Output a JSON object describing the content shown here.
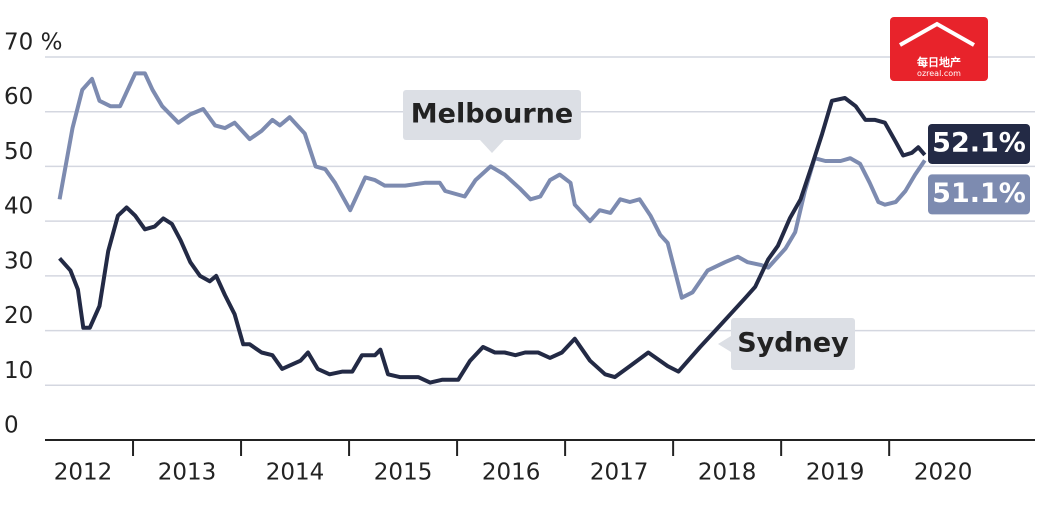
{
  "chart_data": {
    "type": "line",
    "xlim": [
      2012.185,
      2021.35
    ],
    "xticks": [
      {
        "value": 2012,
        "label": "2012"
      },
      {
        "value": 2013,
        "label": "2013"
      },
      {
        "value": 2014,
        "label": "2014"
      },
      {
        "value": 2015,
        "label": "2015"
      },
      {
        "value": 2016,
        "label": "2016"
      },
      {
        "value": 2017,
        "label": "2017"
      },
      {
        "value": 2018,
        "label": "2018"
      },
      {
        "value": 2019,
        "label": "2019"
      },
      {
        "value": 2020,
        "label": "2020"
      }
    ],
    "ylim": [
      0,
      70
    ],
    "yticks": [
      0,
      10,
      20,
      30,
      40,
      50,
      60,
      {
        "value": 70,
        "label": "70 %"
      }
    ],
    "grid": true,
    "watermark": {
      "text": "每日地产",
      "url": "ozreal.com"
    },
    "series": [
      {
        "name": "Melbourne",
        "color": "#7d8bb0",
        "end_label": "51.1%",
        "x": [
          2012.32,
          2012.44,
          2012.53,
          2012.62,
          2012.69,
          2012.79,
          2012.88,
          2013.02,
          2013.11,
          2013.18,
          2013.27,
          2013.42,
          2013.53,
          2013.65,
          2013.76,
          2013.85,
          2013.94,
          2014.08,
          2014.19,
          2014.29,
          2014.36,
          2014.45,
          2014.59,
          2014.69,
          2014.78,
          2014.87,
          2015.01,
          2015.15,
          2015.24,
          2015.33,
          2015.52,
          2015.7,
          2015.84,
          2015.89,
          2016.07,
          2016.17,
          2016.31,
          2016.44,
          2016.58,
          2016.68,
          2016.77,
          2016.86,
          2016.95,
          2017.05,
          2017.09,
          2017.23,
          2017.32,
          2017.42,
          2017.51,
          2017.6,
          2017.69,
          2017.79,
          2017.88,
          2017.95,
          2018.08,
          2018.18,
          2018.32,
          2018.48,
          2018.6,
          2018.69,
          2018.81,
          2018.88,
          2019.04,
          2019.13,
          2019.22,
          2019.31,
          2019.41,
          2019.55,
          2019.64,
          2019.73,
          2019.82,
          2019.9,
          2019.96,
          2020.06,
          2020.15,
          2020.24,
          2020.33
        ],
        "values": [
          44,
          57,
          64,
          66,
          62,
          61,
          61,
          67,
          67,
          64,
          61,
          58,
          59.5,
          60.5,
          57.5,
          57,
          58,
          55,
          56.5,
          58.5,
          57.5,
          59,
          56,
          50,
          49.5,
          47,
          42,
          48,
          47.5,
          46.5,
          46.5,
          47,
          47,
          45.5,
          44.5,
          47.5,
          50,
          48.5,
          46,
          44,
          44.5,
          47.5,
          48.5,
          47,
          43,
          40,
          42,
          41.5,
          44,
          43.5,
          44,
          41,
          37.5,
          36,
          26,
          27,
          31,
          32.5,
          33.5,
          32.5,
          32,
          31.5,
          35,
          38,
          45.5,
          51.5,
          51,
          51,
          51.5,
          50.5,
          47,
          43.5,
          43,
          43.5,
          45.5,
          48.5,
          51.1
        ]
      },
      {
        "name": "Sydney",
        "color": "#232a45",
        "end_label": "52.1%",
        "x": [
          2012.32,
          2012.42,
          2012.49,
          2012.54,
          2012.6,
          2012.69,
          2012.77,
          2012.86,
          2012.94,
          2013.02,
          2013.11,
          2013.2,
          2013.28,
          2013.36,
          2013.44,
          2013.53,
          2013.62,
          2013.71,
          2013.77,
          2013.85,
          2013.94,
          2014.02,
          2014.08,
          2014.19,
          2014.29,
          2014.38,
          2014.55,
          2014.62,
          2014.71,
          2014.82,
          2014.94,
          2015.03,
          2015.12,
          2015.24,
          2015.29,
          2015.36,
          2015.47,
          2015.64,
          2015.75,
          2015.86,
          2016.01,
          2016.12,
          2016.24,
          2016.35,
          2016.44,
          2016.54,
          2016.63,
          2016.75,
          2016.86,
          2016.97,
          2017.09,
          2017.23,
          2017.37,
          2017.46,
          2017.6,
          2017.77,
          2017.95,
          2018.05,
          2018.25,
          2018.39,
          2018.53,
          2018.67,
          2018.76,
          2018.88,
          2018.97,
          2019.08,
          2019.18,
          2019.29,
          2019.38,
          2019.47,
          2019.59,
          2019.69,
          2019.78,
          2019.87,
          2019.96,
          2020.06,
          2020.13,
          2020.21,
          2020.27,
          2020.33
        ],
        "values": [
          33.2,
          31,
          27.5,
          20.5,
          20.5,
          24.5,
          34.5,
          41,
          42.5,
          41,
          38.5,
          39,
          40.5,
          39.5,
          36.5,
          32.5,
          30,
          29,
          30,
          26.5,
          23,
          17.5,
          17.5,
          16,
          15.5,
          13,
          14.5,
          16,
          13,
          12,
          12.5,
          12.5,
          15.5,
          15.5,
          16.5,
          12,
          11.5,
          11.5,
          10.5,
          11,
          11,
          14.5,
          17,
          16,
          16,
          15.5,
          16,
          16,
          15,
          16,
          18.5,
          14.5,
          12,
          11.5,
          13.5,
          16,
          13.5,
          12.5,
          17,
          20,
          23,
          26,
          28,
          33,
          35.5,
          40.5,
          44,
          50.5,
          56,
          62,
          62.5,
          61,
          58.5,
          58.5,
          58,
          54.5,
          52,
          52.5,
          53.5,
          52.1
        ]
      }
    ]
  }
}
